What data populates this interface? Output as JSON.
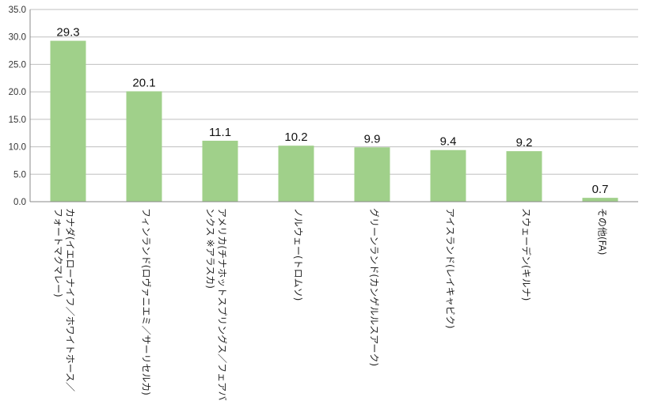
{
  "chart_data": {
    "type": "bar",
    "categories": [
      "カナダ(イエローナイフ／ホワイトホース／フォートマクマレー)",
      "フィンランド(ロヴァニエミ／サーリセルカ)",
      "アメリカ(チナホットスプリングス／フェアバンクス ※アラスカ)",
      "ノルウェー(トロムソ)",
      "グリーンランド(カンゲルルスアーク)",
      "アイスランド(レイキャビク)",
      "スウェーデン(キルナ)",
      "その他(FA)"
    ],
    "category_lines": [
      [
        "カナダ(イエローナイフ／ホワイトホース／",
        "フォートマクマレー)"
      ],
      [
        "フィンランド(ロヴァニエミ／サーリセルカ)"
      ],
      [
        "アメリカ(チナホットスプリングス／フェアバ",
        "ンクス ※アラスカ)"
      ],
      [
        "ノルウェー(トロムソ)"
      ],
      [
        "グリーンランド(カンゲルルスアーク)"
      ],
      [
        "アイスランド(レイキャビク)"
      ],
      [
        "スウェーデン(キルナ)"
      ],
      [
        "その他(FA)"
      ]
    ],
    "values": [
      29.3,
      20.1,
      11.1,
      10.2,
      9.9,
      9.4,
      9.2,
      0.7
    ],
    "data_labels": [
      "29.3",
      "20.1",
      "11.1",
      "10.2",
      "9.9",
      "9.4",
      "9.2",
      "0.7"
    ],
    "yticks": [
      "0.0",
      "5.0",
      "10.0",
      "15.0",
      "20.0",
      "25.0",
      "30.0",
      "35.0"
    ],
    "ylim": [
      0,
      35
    ],
    "grid": true,
    "legend": "none",
    "bar_color": "#a0d08a",
    "grid_color": "#bfbfbf"
  }
}
